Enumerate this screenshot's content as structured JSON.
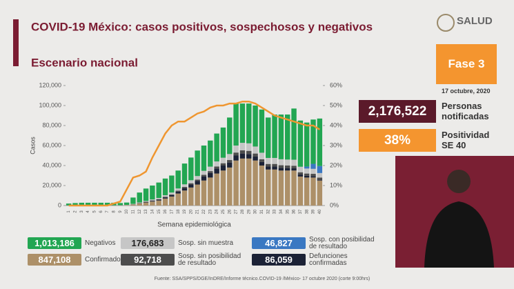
{
  "header": {
    "title": "COVID-19 México: casos positivos, sospechosos y negativos",
    "subtitle": "Escenario nacional",
    "logo": "SALUD"
  },
  "side": {
    "phase": "Fase 3",
    "date": "17 octubre, 2020",
    "notified_value": "2,176,522",
    "notified_label": "Personas notificadas",
    "positivity_value": "38%",
    "positivity_label": "Positividad SE 40"
  },
  "footer": "Fuente: SSA/SPPS/DGE/InDRE/Informe técnico.COVID-19 /México- 17 octubre 2020 (corte 9:00hrs)",
  "chart_data": {
    "type": "bar",
    "stacked": true,
    "ylabel": "Casos",
    "xlabel": "Semana epidemiológica",
    "categories": [
      "1",
      "2",
      "3",
      "4",
      "5",
      "6",
      "7",
      "8",
      "9",
      "10",
      "11",
      "12",
      "13",
      "14",
      "15",
      "16",
      "17",
      "18",
      "19",
      "20",
      "21",
      "22",
      "23",
      "24",
      "25",
      "26",
      "27",
      "28",
      "29",
      "30",
      "31",
      "32",
      "33",
      "34",
      "35",
      "36",
      "37",
      "38",
      "39",
      "40"
    ],
    "ylim": [
      0,
      120000
    ],
    "yticks": [
      {
        "value": 0,
        "label": "0"
      },
      {
        "value": 20000,
        "label": "20,000"
      },
      {
        "value": 40000,
        "label": "40,000"
      },
      {
        "value": 60000,
        "label": "60,000"
      },
      {
        "value": 80000,
        "label": "80,000"
      },
      {
        "value": 100000,
        "label": "100,000"
      },
      {
        "value": 120000,
        "label": "120,000"
      }
    ],
    "y2lim": [
      0,
      60
    ],
    "y2ticks": [
      {
        "value": 0,
        "label": "0%"
      },
      {
        "value": 10,
        "label": "10%"
      },
      {
        "value": 20,
        "label": "20%"
      },
      {
        "value": 30,
        "label": "30%"
      },
      {
        "value": 40,
        "label": "40%"
      },
      {
        "value": 50,
        "label": "50%"
      },
      {
        "value": 60,
        "label": "60%"
      }
    ],
    "series": [
      {
        "name": "Confirmados",
        "total": "847,108",
        "color": "#ad9068",
        "values": [
          100,
          100,
          100,
          100,
          100,
          100,
          150,
          150,
          200,
          400,
          1000,
          2000,
          3000,
          4000,
          5000,
          7000,
          9000,
          12000,
          15000,
          18000,
          21000,
          25000,
          28000,
          32000,
          35000,
          38000,
          45000,
          47000,
          47000,
          45000,
          40000,
          36000,
          36000,
          35000,
          35000,
          35000,
          29000,
          28000,
          28000,
          25000
        ]
      },
      {
        "name": "Defunciones confirmadas",
        "total": "86,059",
        "color": "#1c2236",
        "values": [
          0,
          0,
          0,
          0,
          0,
          0,
          0,
          0,
          0,
          50,
          150,
          300,
          500,
          700,
          900,
          1200,
          1500,
          2000,
          2500,
          3000,
          3500,
          4000,
          4500,
          5000,
          5000,
          5000,
          5000,
          5000,
          4500,
          4000,
          3500,
          3000,
          3000,
          2800,
          2500,
          2300,
          2000,
          1800,
          1500,
          1000
        ]
      },
      {
        "name": "Sosp. sin posibilidad de resultado",
        "total": "92,718",
        "color": "#4d4d4d",
        "values": [
          0,
          0,
          0,
          0,
          0,
          0,
          0,
          0,
          0,
          50,
          100,
          200,
          300,
          400,
          500,
          600,
          700,
          900,
          1100,
          1300,
          1500,
          1700,
          1900,
          2100,
          2300,
          2500,
          3000,
          3200,
          3200,
          3000,
          2800,
          2600,
          2600,
          2500,
          2500,
          2500,
          2300,
          2200,
          2200,
          2000
        ]
      },
      {
        "name": "Sosp. sin muestra",
        "total": "176,683",
        "color": "#c6c6c6",
        "values": [
          100,
          100,
          100,
          100,
          100,
          100,
          100,
          100,
          150,
          200,
          400,
          600,
          800,
          1000,
          1200,
          1500,
          1800,
          2200,
          2600,
          3000,
          3500,
          4000,
          4500,
          5000,
          5500,
          6000,
          7000,
          7500,
          7500,
          7000,
          6500,
          6000,
          6000,
          6000,
          6000,
          6000,
          5500,
          5000,
          5000,
          4500
        ]
      },
      {
        "name": "Sosp. con posibilidad de resultado",
        "total": "46,827",
        "color": "#3a78c2",
        "values": [
          0,
          0,
          0,
          0,
          0,
          0,
          0,
          0,
          0,
          0,
          0,
          0,
          0,
          0,
          0,
          0,
          0,
          0,
          0,
          0,
          0,
          0,
          0,
          0,
          0,
          0,
          0,
          0,
          0,
          0,
          0,
          0,
          0,
          0,
          0,
          0,
          0,
          2000,
          5000,
          7000
        ]
      },
      {
        "name": "Negativos",
        "total": "1,013,186",
        "color": "#22a652",
        "values": [
          1800,
          2300,
          2600,
          2600,
          2600,
          2600,
          2550,
          2550,
          2150,
          2300,
          6350,
          9900,
          12400,
          13900,
          15400,
          16700,
          17000,
          17900,
          20800,
          22700,
          25500,
          25300,
          26100,
          27900,
          30200,
          36500,
          42000,
          39300,
          39800,
          41000,
          43200,
          40400,
          43400,
          44700,
          45000,
          51200,
          46200,
          44000,
          44300,
          47500
        ]
      }
    ],
    "line": {
      "name": "Positividad",
      "color": "#ef9630",
      "axis": "y2",
      "values": [
        0,
        0,
        0,
        0,
        0,
        0,
        0,
        1,
        2,
        8,
        14,
        15,
        17,
        24,
        30,
        36,
        40,
        42,
        42,
        44,
        46,
        47,
        49,
        50,
        50,
        51,
        51,
        52,
        52,
        51,
        49,
        47,
        45,
        44,
        43,
        42,
        41,
        40,
        40,
        38
      ]
    }
  }
}
